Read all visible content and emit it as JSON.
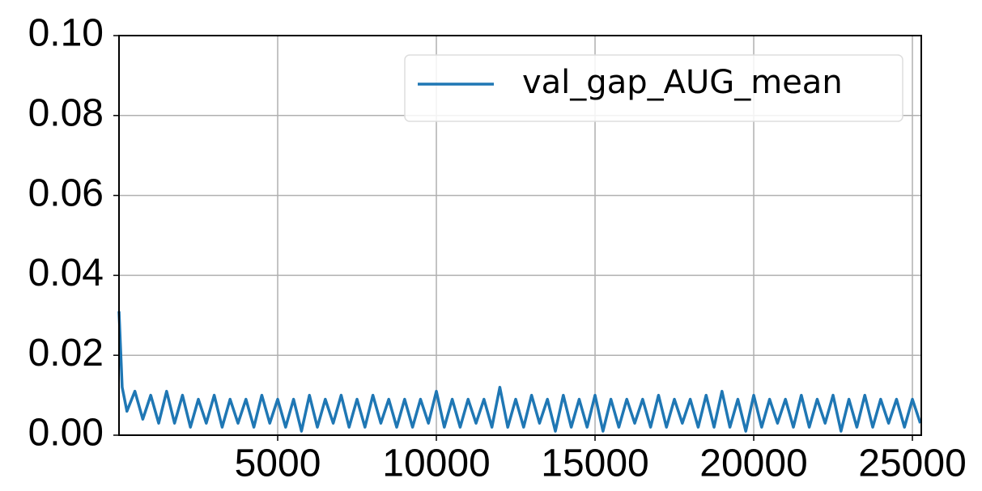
{
  "chart_data": {
    "type": "line",
    "x": [
      0,
      100,
      250,
      500,
      750,
      1000,
      1250,
      1500,
      1750,
      2000,
      2250,
      2500,
      2750,
      3000,
      3250,
      3500,
      3750,
      4000,
      4250,
      4500,
      4750,
      5000,
      5250,
      5500,
      5750,
      6000,
      6250,
      6500,
      6750,
      7000,
      7250,
      7500,
      7750,
      8000,
      8250,
      8500,
      8750,
      9000,
      9250,
      9500,
      9750,
      10000,
      10250,
      10500,
      10750,
      11000,
      11250,
      11500,
      11750,
      12000,
      12250,
      12500,
      12750,
      13000,
      13250,
      13500,
      13750,
      14000,
      14250,
      14500,
      14750,
      15000,
      15250,
      15500,
      15750,
      16000,
      16250,
      16500,
      16750,
      17000,
      17250,
      17500,
      17750,
      18000,
      18250,
      18500,
      18750,
      19000,
      19250,
      19500,
      19750,
      20000,
      20250,
      20500,
      20750,
      21000,
      21250,
      21500,
      21750,
      22000,
      22250,
      22500,
      22750,
      23000,
      23250,
      23500,
      23750,
      24000,
      24250,
      24500,
      24750,
      25000,
      25250
    ],
    "series": [
      {
        "name": "val_gap_AUG_mean",
        "color": "#1f77b4",
        "values": [
          0.031,
          0.012,
          0.006,
          0.011,
          0.004,
          0.01,
          0.003,
          0.011,
          0.003,
          0.01,
          0.002,
          0.009,
          0.003,
          0.01,
          0.002,
          0.009,
          0.003,
          0.009,
          0.002,
          0.01,
          0.003,
          0.009,
          0.002,
          0.009,
          0.001,
          0.01,
          0.002,
          0.009,
          0.003,
          0.01,
          0.002,
          0.009,
          0.002,
          0.01,
          0.003,
          0.009,
          0.002,
          0.009,
          0.002,
          0.009,
          0.003,
          0.011,
          0.002,
          0.009,
          0.002,
          0.009,
          0.003,
          0.009,
          0.002,
          0.012,
          0.002,
          0.009,
          0.002,
          0.01,
          0.003,
          0.009,
          0.001,
          0.01,
          0.002,
          0.009,
          0.002,
          0.01,
          0.001,
          0.009,
          0.002,
          0.009,
          0.003,
          0.009,
          0.002,
          0.01,
          0.002,
          0.009,
          0.003,
          0.009,
          0.002,
          0.01,
          0.002,
          0.011,
          0.002,
          0.009,
          0.001,
          0.01,
          0.002,
          0.009,
          0.003,
          0.009,
          0.002,
          0.01,
          0.002,
          0.009,
          0.003,
          0.01,
          0.001,
          0.009,
          0.002,
          0.01,
          0.002,
          0.009,
          0.003,
          0.009,
          0.002,
          0.009,
          0.003
        ]
      }
    ],
    "xlim": [
      0,
      25280
    ],
    "ylim": [
      0,
      0.1
    ],
    "xticks": [
      5000,
      10000,
      15000,
      20000,
      25000
    ],
    "yticks": [
      {
        "value": 0,
        "label": "0.00"
      },
      {
        "value": 0.02,
        "label": "0.02"
      },
      {
        "value": 0.04,
        "label": "0.04"
      },
      {
        "value": 0.06,
        "label": "0.06"
      },
      {
        "value": 0.08,
        "label": "0.08"
      },
      {
        "value": 0.1,
        "label": "0.10"
      }
    ],
    "grid": true,
    "legend": "upper right"
  }
}
